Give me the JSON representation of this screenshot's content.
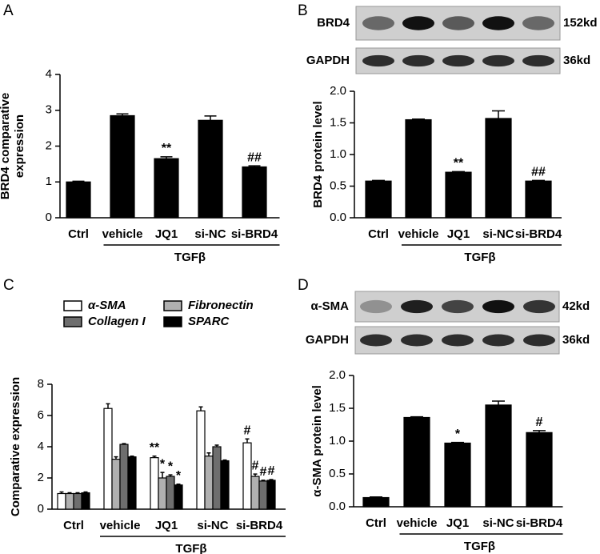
{
  "chart_data": [
    {
      "type": "bar",
      "panel": "A",
      "ylabel": [
        "BRD4 comparative",
        "expression"
      ],
      "categories": [
        "Ctrl",
        "vehicle",
        "JQ1",
        "si-NC",
        "si-BRD4"
      ],
      "values": [
        1.0,
        2.85,
        1.65,
        2.72,
        1.42
      ],
      "errors": [
        0.02,
        0.05,
        0.05,
        0.12,
        0.03
      ],
      "annotations": [
        null,
        null,
        "**",
        null,
        "##"
      ],
      "color": "#000000",
      "ylim": [
        0,
        4
      ],
      "yticks": [
        0,
        1,
        2,
        3,
        4
      ],
      "group_label": "TGFβ"
    },
    {
      "type": "bar",
      "panel": "B",
      "ylabel": [
        "BRD4 protein level"
      ],
      "blot": [
        {
          "name": "BRD4",
          "size": "152kd"
        },
        {
          "name": "GAPDH",
          "size": "36kd"
        }
      ],
      "categories": [
        "Ctrl",
        "vehicle",
        "JQ1",
        "si-NC",
        "si-BRD4"
      ],
      "values": [
        0.58,
        1.55,
        0.72,
        1.57,
        0.58
      ],
      "errors": [
        0.01,
        0.01,
        0.01,
        0.12,
        0.01
      ],
      "annotations": [
        null,
        null,
        "**",
        null,
        "##"
      ],
      "color": "#000000",
      "ylim": [
        0,
        2
      ],
      "yticks": [
        {
          "value": 0,
          "label": "0.0"
        },
        0.5,
        {
          "value": 1,
          "label": "1.0"
        },
        1.5,
        {
          "value": 2,
          "label": "2.0"
        }
      ],
      "group_label": "TGFβ"
    },
    {
      "type": "bar",
      "panel": "C",
      "ylabel": [
        "Comparative expression"
      ],
      "categories": [
        "Ctrl",
        "vehicle",
        "JQ1",
        "si-NC",
        "si-BRD4"
      ],
      "series": [
        {
          "name": "α-SMA",
          "color": "#ffffff",
          "values": [
            1.0,
            6.45,
            3.3,
            6.3,
            4.25
          ],
          "errors": [
            0.1,
            0.3,
            0.1,
            0.25,
            0.25
          ],
          "annotations": [
            null,
            null,
            "**",
            null,
            "#"
          ]
        },
        {
          "name": "Fibronectin",
          "color": "#b0b0b0",
          "values": [
            1.0,
            3.2,
            2.0,
            3.4,
            2.1
          ],
          "errors": [
            0.05,
            0.15,
            0.35,
            0.2,
            0.15
          ],
          "annotations": [
            null,
            null,
            "*",
            null,
            "#"
          ]
        },
        {
          "name": "Collagen I",
          "color": "#6e6e6e",
          "values": [
            1.0,
            4.15,
            2.1,
            4.0,
            1.8
          ],
          "errors": [
            0.05,
            0.05,
            0.1,
            0.1,
            0.05
          ],
          "annotations": [
            null,
            null,
            "*",
            null,
            "#"
          ]
        },
        {
          "name": "SPARC",
          "color": "#000000",
          "values": [
            1.05,
            3.35,
            1.55,
            3.1,
            1.85
          ],
          "errors": [
            0.05,
            0.05,
            0.05,
            0.05,
            0.05
          ],
          "annotations": [
            null,
            null,
            "*",
            null,
            "#"
          ]
        }
      ],
      "ylim": [
        0,
        8
      ],
      "yticks": [
        0,
        2,
        4,
        6,
        8
      ],
      "group_label": "TGFβ"
    },
    {
      "type": "bar",
      "panel": "D",
      "ylabel": [
        "α-SMA protein level"
      ],
      "blot": [
        {
          "name": "α-SMA",
          "size": "42kd"
        },
        {
          "name": "GAPDH",
          "size": "36kd"
        }
      ],
      "categories": [
        "Ctrl",
        "vehicle",
        "JQ1",
        "si-NC",
        "si-BRD4"
      ],
      "values": [
        0.14,
        1.36,
        0.97,
        1.55,
        1.13
      ],
      "errors": [
        0.01,
        0.01,
        0.01,
        0.06,
        0.03
      ],
      "annotations": [
        null,
        null,
        "*",
        null,
        "#"
      ],
      "color": "#000000",
      "ylim": [
        0,
        2
      ],
      "yticks": [
        {
          "value": 0,
          "label": "0.0"
        },
        0.5,
        {
          "value": 1,
          "label": "1.0"
        },
        1.5,
        {
          "value": 2,
          "label": "2.0"
        }
      ],
      "group_label": "TGFβ"
    }
  ]
}
